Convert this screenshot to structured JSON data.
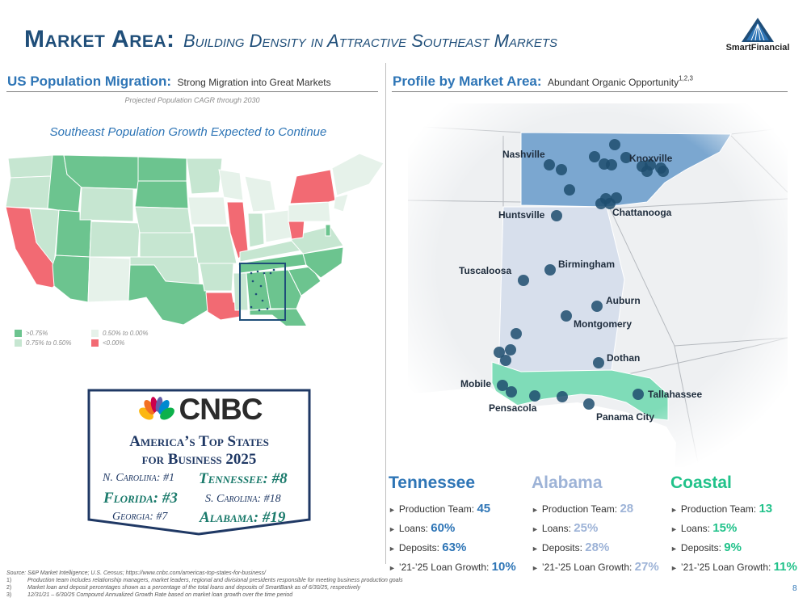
{
  "header": {
    "title_main": "Market Area:",
    "title_sub": "Building Density in Attractive Southeast Markets",
    "logo_text": "SmartFinancial"
  },
  "left": {
    "heading": "US Population Migration:",
    "subheading": "Strong Migration into Great Markets",
    "projection_label": "Projected Population CAGR through 2030",
    "map_title": "Southeast Population Growth Expected to Continue",
    "legend": [
      {
        "label": ">0.75%",
        "color": "#6cc48f"
      },
      {
        "label": "0.50% to 0.00%",
        "color": "#e6f2ea"
      },
      {
        "label": "0.75% to 0.50%",
        "color": "#c6e6d1"
      },
      {
        "label": "<0.00%",
        "color": "#f26a73"
      }
    ]
  },
  "cnbc": {
    "logo_text": "CNBC",
    "title_line1": "America’s Top States",
    "title_line2": "for Business 2025",
    "rankings": [
      {
        "text": "N. Carolina: #1"
      },
      {
        "text": "Tennessee: #8"
      },
      {
        "text": "Florida: #3"
      },
      {
        "text": "S. Carolina: #18"
      },
      {
        "text": "Georgia: #7"
      },
      {
        "text": "Alabama: #19"
      }
    ]
  },
  "right": {
    "heading": "Profile by Market Area:",
    "subheading": "Abundant Organic Opportunity",
    "superscript": "1,2,3",
    "cities": [
      "Nashville",
      "Knoxville",
      "Huntsville",
      "Chattanooga",
      "Tuscaloosa",
      "Birmingham",
      "Auburn",
      "Montgomery",
      "Dothan",
      "Mobile",
      "Tallahassee",
      "Pensacola",
      "Panama City"
    ]
  },
  "markets": [
    {
      "name": "Tennessee",
      "color": "#2e75b6",
      "stats": [
        {
          "label": "Production Team:",
          "value": "45"
        },
        {
          "label": "Loans:",
          "value": "60%"
        },
        {
          "label": "Deposits:",
          "value": "63%"
        },
        {
          "label": "’21-’25 Loan Growth:",
          "value": "10%"
        }
      ]
    },
    {
      "name": "Alabama",
      "color": "#9db3d7",
      "stats": [
        {
          "label": "Production Team:",
          "value": "28"
        },
        {
          "label": "Loans:",
          "value": "25%"
        },
        {
          "label": "Deposits:",
          "value": "28%"
        },
        {
          "label": "’21-’25 Loan Growth:",
          "value": "27%"
        }
      ]
    },
    {
      "name": "Coastal",
      "color": "#21c28a",
      "stats": [
        {
          "label": "Production Team:",
          "value": "13"
        },
        {
          "label": "Loans:",
          "value": "15%"
        },
        {
          "label": "Deposits:",
          "value": "9%"
        },
        {
          "label": "’21-’25 Loan Growth:",
          "value": "11%"
        }
      ]
    }
  ],
  "footnotes": {
    "source": "Source: S&P Market Intelligence; U.S. Census; https://www.cnbc.com/americas-top-states-for-business/",
    "notes": [
      {
        "num": "1)",
        "text": "Production team includes relationship managers, market leaders, regional and divisional presidents responsible for meeting business production goals"
      },
      {
        "num": "2)",
        "text": "Market loan and deposit percentages shown as a percentage of the total loans and deposits of SmartBank as of 6/30/25, respectively"
      },
      {
        "num": "3)",
        "text": "12/31/21 – 6/30/25 Compound Annualized Growth Rate based on market loan growth over the time period"
      }
    ]
  },
  "page_number": "8"
}
